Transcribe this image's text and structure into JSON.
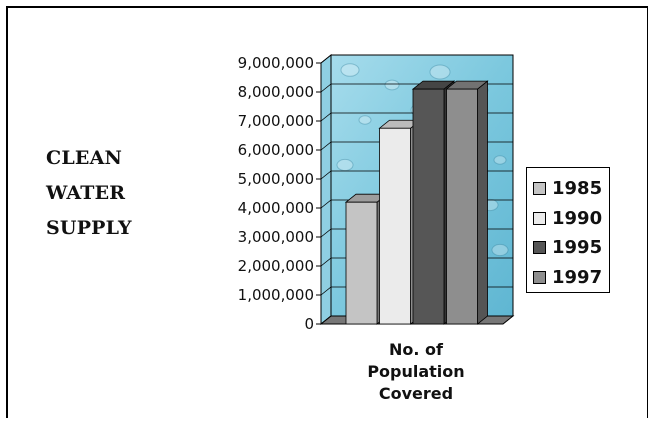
{
  "side_title": [
    "CLEAN",
    "WATER",
    "SUPPLY"
  ],
  "chart_data": {
    "type": "bar",
    "categories": [
      "No. of Population Covered"
    ],
    "category_label_lines": [
      "No. of",
      "Population",
      "Covered"
    ],
    "series": [
      {
        "name": "1985",
        "values": [
          4200000
        ],
        "color": "#c4c4c4"
      },
      {
        "name": "1990",
        "values": [
          6750000
        ],
        "color": "#ebebeb"
      },
      {
        "name": "1995",
        "values": [
          8100000
        ],
        "color": "#565656"
      },
      {
        "name": "1997",
        "values": [
          8100000
        ],
        "color": "#8e8e8e"
      }
    ],
    "ylim": [
      0,
      9000000
    ],
    "yticks": [
      0,
      1000000,
      2000000,
      3000000,
      4000000,
      5000000,
      6000000,
      7000000,
      8000000,
      9000000
    ],
    "ytick_labels": [
      "0",
      "1,000,000",
      "2,000,000",
      "3,000,000",
      "4,000,000",
      "5,000,000",
      "6,000,000",
      "7,000,000",
      "8,000,000",
      "9,000,000"
    ],
    "grid": true,
    "legend": "right",
    "background": "water-texture",
    "three_d": true
  }
}
